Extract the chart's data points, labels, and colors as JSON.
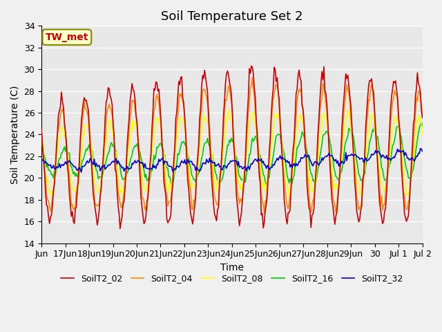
{
  "title": "Soil Temperature Set 2",
  "xlabel": "Time",
  "ylabel": "Soil Temperature (C)",
  "ylim": [
    14,
    34
  ],
  "yticks": [
    14,
    16,
    18,
    20,
    22,
    24,
    26,
    28,
    30,
    32,
    34
  ],
  "series_colors": {
    "SoilT2_02": "#cc0000",
    "SoilT2_04": "#ff8800",
    "SoilT2_08": "#ffff00",
    "SoilT2_16": "#00cc00",
    "SoilT2_32": "#0000cc"
  },
  "annotation_text": "TW_met",
  "annotation_color": "#cc0000",
  "annotation_bg": "#ffffcc",
  "annotation_border": "#888800",
  "bg_color": "#e8e8e8",
  "title_fontsize": 13,
  "axis_fontsize": 10,
  "tick_fontsize": 9,
  "legend_fontsize": 9,
  "line_width": 1.2,
  "x_tick_labels": [
    "Jun",
    "17Jun",
    "18Jun",
    "19Jun",
    "20Jun",
    "21Jun",
    "22Jun",
    "23Jun",
    "24Jun",
    "25Jun",
    "26Jun",
    "27Jun",
    "28Jun",
    "29Jun",
    "30",
    "Jul 1",
    "Jul 2"
  ]
}
